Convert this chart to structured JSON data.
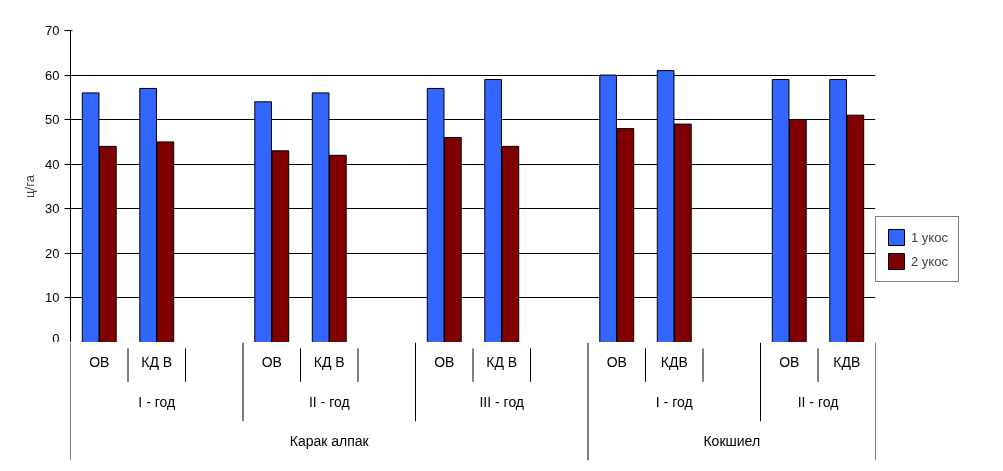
{
  "chart_data": {
    "type": "bar",
    "ylabel": "ц/га",
    "categories": [
      "ОВ",
      "КД В",
      null,
      "ОВ",
      "КД В",
      null,
      "ОВ",
      "КД В",
      null,
      "ОВ",
      "КДВ",
      null,
      "ОВ",
      "КДВ"
    ],
    "series": [
      {
        "name": "1 укос",
        "color": "#3366ff",
        "values": [
          56,
          57,
          null,
          54,
          56,
          null,
          57,
          59,
          null,
          60,
          61,
          null,
          59,
          59
        ]
      },
      {
        "name": "2 укос",
        "color": "#800000",
        "values": [
          44,
          45,
          null,
          43,
          42,
          null,
          46,
          44,
          null,
          48,
          49,
          null,
          50,
          51
        ]
      }
    ],
    "ylim": [
      0,
      70
    ],
    "yticks": [
      0,
      10,
      20,
      30,
      40,
      50,
      60,
      70
    ],
    "grid": "y",
    "legend": "right",
    "annotations": [
      "I - год",
      "II - год",
      "III - год",
      "I - год",
      "II - год",
      "Карак алпак",
      "Кокшиел"
    ]
  }
}
